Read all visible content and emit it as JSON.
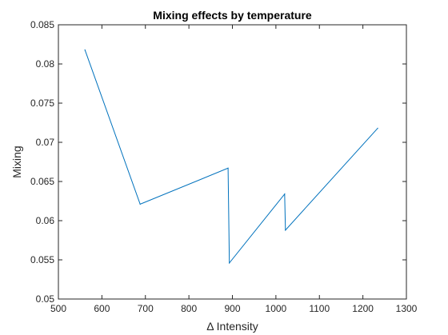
{
  "chart_data": {
    "type": "line",
    "title": "Mixing effects by temperature",
    "xlabel": "Δ Intensity",
    "ylabel": "Mixing",
    "xlim": [
      500,
      1300
    ],
    "ylim": [
      0.05,
      0.085
    ],
    "x_ticks": [
      500,
      600,
      700,
      800,
      900,
      1000,
      1100,
      1200,
      1300
    ],
    "y_ticks": [
      0.05,
      0.055,
      0.06,
      0.065,
      0.07,
      0.075,
      0.08,
      0.085
    ],
    "x_tick_labels": [
      "500",
      "600",
      "700",
      "800",
      "900",
      "1000",
      "1100",
      "1200",
      "1300"
    ],
    "y_tick_labels": [
      "0.05",
      "0.055",
      "0.06",
      "0.065",
      "0.07",
      "0.075",
      "0.08",
      "0.085"
    ],
    "grid": false,
    "box": true,
    "series": [
      {
        "color": "#0072bd",
        "x": [
          561,
          688,
          890,
          893,
          1020,
          1022,
          1234
        ],
        "y": [
          0.0818,
          0.0621,
          0.0667,
          0.0546,
          0.0634,
          0.0588,
          0.0718
        ]
      }
    ]
  }
}
